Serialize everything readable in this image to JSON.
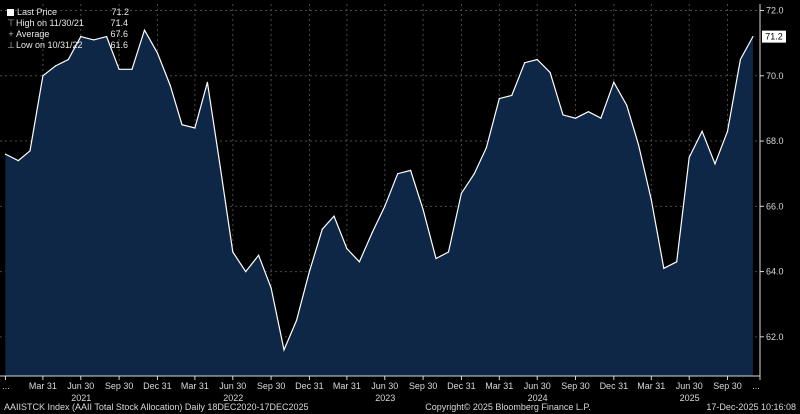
{
  "colors": {
    "background": "#000000",
    "area_fill": "#0f2747",
    "line": "#ffffff",
    "grid": "#4a4a4a",
    "axis_text": "#d9d9d9"
  },
  "legend": {
    "items": [
      {
        "label": "Last Price",
        "value": "71.2",
        "marker": "swatch"
      },
      {
        "label": "High on 11/30/21",
        "value": "71.4",
        "marker": "high-icon"
      },
      {
        "label": "Average",
        "value": "67.6",
        "marker": "average-icon"
      },
      {
        "label": "Low on 10/31/22",
        "value": "61.6",
        "marker": "low-icon"
      }
    ]
  },
  "last_price_badge": "71.2",
  "footer": {
    "ticker": "AAIISTCK Index (AAII Total Stock Allocation) Daily 18DEC2020-17DEC2025",
    "copyright": "Copyright© 2025 Bloomberg Finance L.P.",
    "timestamp": "17-Dec-2025 10:16:08"
  },
  "chart_data": {
    "type": "area",
    "ylim": [
      60.8,
      72.2
    ],
    "y_ticks": [
      62.0,
      64.0,
      66.0,
      68.0,
      70.0,
      72.0
    ],
    "y_tick_labels": [
      "62.0",
      "64.0",
      "66.0",
      "68.0",
      "70.0",
      "72.0"
    ],
    "xlim": [
      "2020-12-18",
      "2025-12-17"
    ],
    "x_ticks": [
      {
        "date": "2020-12-31",
        "label": "..."
      },
      {
        "date": "2021-03-31",
        "label": "Mar 31"
      },
      {
        "date": "2021-06-30",
        "label": "Jun 30"
      },
      {
        "date": "2021-09-30",
        "label": "Sep 30"
      },
      {
        "date": "2021-12-31",
        "label": "Dec 31"
      },
      {
        "date": "2022-03-31",
        "label": "Mar 31"
      },
      {
        "date": "2022-06-30",
        "label": "Jun 30"
      },
      {
        "date": "2022-09-30",
        "label": "Sep 30"
      },
      {
        "date": "2022-12-31",
        "label": "Dec 31"
      },
      {
        "date": "2023-03-31",
        "label": "Mar 31"
      },
      {
        "date": "2023-06-30",
        "label": "Jun 30"
      },
      {
        "date": "2023-09-30",
        "label": "Sep 30"
      },
      {
        "date": "2023-12-31",
        "label": "Dec 31"
      },
      {
        "date": "2024-03-31",
        "label": "Mar 31"
      },
      {
        "date": "2024-06-30",
        "label": "Jun 30"
      },
      {
        "date": "2024-09-30",
        "label": "Sep 30"
      },
      {
        "date": "2024-12-31",
        "label": "Dec 31"
      },
      {
        "date": "2025-03-31",
        "label": "Mar 31"
      },
      {
        "date": "2025-06-30",
        "label": "Jun 30"
      },
      {
        "date": "2025-09-30",
        "label": "Sep 30"
      },
      {
        "date": "2025-12-17",
        "label": "..."
      }
    ],
    "year_labels": [
      {
        "date": "2021-07-01",
        "label": "2021"
      },
      {
        "date": "2022-07-01",
        "label": "2022"
      },
      {
        "date": "2023-07-01",
        "label": "2023"
      },
      {
        "date": "2024-07-01",
        "label": "2024"
      },
      {
        "date": "2025-07-01",
        "label": "2025"
      }
    ],
    "grid": true,
    "y_axis_position": "right",
    "legend_placement": "top-left",
    "series": [
      {
        "values": [
          [
            "2020-12-31",
            67.6
          ],
          [
            "2021-01-31",
            67.4
          ],
          [
            "2021-02-28",
            67.7
          ],
          [
            "2021-03-31",
            70.0
          ],
          [
            "2021-04-30",
            70.3
          ],
          [
            "2021-05-31",
            70.5
          ],
          [
            "2021-06-30",
            71.2
          ],
          [
            "2021-07-31",
            71.1
          ],
          [
            "2021-08-31",
            71.2
          ],
          [
            "2021-09-30",
            70.2
          ],
          [
            "2021-10-31",
            70.2
          ],
          [
            "2021-11-30",
            71.4
          ],
          [
            "2021-12-31",
            70.7
          ],
          [
            "2022-01-31",
            69.7
          ],
          [
            "2022-02-28",
            68.5
          ],
          [
            "2022-03-31",
            68.4
          ],
          [
            "2022-04-30",
            69.8
          ],
          [
            "2022-05-31",
            67.2
          ],
          [
            "2022-06-30",
            64.6
          ],
          [
            "2022-07-31",
            64.0
          ],
          [
            "2022-08-31",
            64.5
          ],
          [
            "2022-09-30",
            63.5
          ],
          [
            "2022-10-31",
            61.6
          ],
          [
            "2022-11-30",
            62.5
          ],
          [
            "2022-12-31",
            64.0
          ],
          [
            "2023-01-31",
            65.3
          ],
          [
            "2023-02-28",
            65.7
          ],
          [
            "2023-03-31",
            64.7
          ],
          [
            "2023-04-30",
            64.3
          ],
          [
            "2023-05-31",
            65.2
          ],
          [
            "2023-06-30",
            66.0
          ],
          [
            "2023-07-31",
            67.0
          ],
          [
            "2023-08-31",
            67.1
          ],
          [
            "2023-09-30",
            65.9
          ],
          [
            "2023-10-31",
            64.4
          ],
          [
            "2023-11-30",
            64.6
          ],
          [
            "2023-12-31",
            66.4
          ],
          [
            "2024-01-31",
            67.0
          ],
          [
            "2024-02-29",
            67.8
          ],
          [
            "2024-03-31",
            69.3
          ],
          [
            "2024-04-30",
            69.4
          ],
          [
            "2024-05-31",
            70.4
          ],
          [
            "2024-06-30",
            70.5
          ],
          [
            "2024-07-31",
            70.1
          ],
          [
            "2024-08-31",
            68.8
          ],
          [
            "2024-09-30",
            68.7
          ],
          [
            "2024-10-31",
            68.9
          ],
          [
            "2024-11-30",
            68.7
          ],
          [
            "2024-12-31",
            69.8
          ],
          [
            "2025-01-31",
            69.1
          ],
          [
            "2025-02-28",
            67.9
          ],
          [
            "2025-03-31",
            66.2
          ],
          [
            "2025-04-30",
            64.1
          ],
          [
            "2025-05-31",
            64.3
          ],
          [
            "2025-06-30",
            67.5
          ],
          [
            "2025-07-31",
            68.3
          ],
          [
            "2025-08-31",
            67.3
          ],
          [
            "2025-09-30",
            68.3
          ],
          [
            "2025-10-31",
            70.5
          ],
          [
            "2025-11-30",
            71.2
          ]
        ]
      }
    ]
  }
}
